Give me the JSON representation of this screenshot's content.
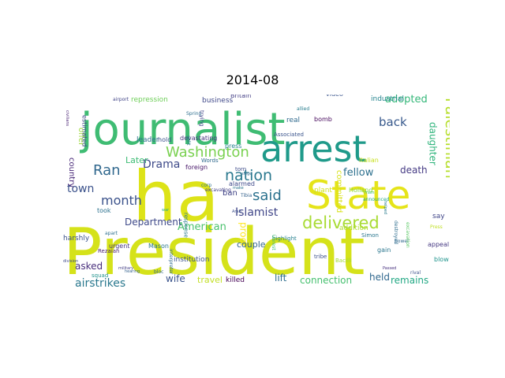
{
  "chart_data": {
    "type": "wordcloud",
    "title": "2014-08",
    "words": [
      {
        "text": "President",
        "color": "#d5e21a"
      },
      {
        "text": "journalist",
        "color": "#3fbc73"
      },
      {
        "text": "ha",
        "color": "#dde318"
      },
      {
        "text": "arrest",
        "color": "#1f9a8a"
      },
      {
        "text": "State",
        "color": "#e5e419"
      },
      {
        "text": "Palestinian",
        "color": "#b5de2b"
      },
      {
        "text": "Washington",
        "color": "#7ad151"
      },
      {
        "text": "nation",
        "color": "#2a788e"
      },
      {
        "text": "delivered",
        "color": "#a8db34"
      },
      {
        "text": "month",
        "color": "#3b528b"
      },
      {
        "text": "Ran",
        "color": "#31688e"
      },
      {
        "text": "said",
        "color": "#2c728e"
      },
      {
        "text": "airstrikes",
        "color": "#2a788e"
      },
      {
        "text": "back",
        "color": "#38598c"
      },
      {
        "text": "Drama",
        "color": "#3e4a89"
      },
      {
        "text": "town",
        "color": "#3b528b"
      },
      {
        "text": "Islamist",
        "color": "#404688"
      },
      {
        "text": "American",
        "color": "#4ac16d"
      },
      {
        "text": "Department",
        "color": "#3e4989"
      },
      {
        "text": "fellow",
        "color": "#2d708e"
      },
      {
        "text": "adopted",
        "color": "#35b779"
      },
      {
        "text": "death",
        "color": "#443983"
      },
      {
        "text": "connection",
        "color": "#46c06f"
      },
      {
        "text": "remains",
        "color": "#22a884"
      },
      {
        "text": "held",
        "color": "#31688e"
      },
      {
        "text": "travel",
        "color": "#c2df23"
      },
      {
        "text": "wife",
        "color": "#3a538b"
      },
      {
        "text": "proof",
        "color": "#fde725"
      },
      {
        "text": "couple",
        "color": "#32658e"
      },
      {
        "text": "asked",
        "color": "#472d7b"
      },
      {
        "text": "lift",
        "color": "#2e6e8e"
      },
      {
        "text": "killed",
        "color": "#440154"
      },
      {
        "text": "daughter",
        "color": "#2fb47c"
      },
      {
        "text": "country",
        "color": "#482878"
      },
      {
        "text": "Later",
        "color": "#3dbc74"
      },
      {
        "text": "offer",
        "color": "#9dd93b"
      },
      {
        "text": "committed",
        "color": "#d8e219"
      },
      {
        "text": "industrial",
        "color": "#25848e"
      },
      {
        "text": "repression",
        "color": "#6ece58"
      },
      {
        "text": "business",
        "color": "#3f4889"
      },
      {
        "text": "devastating",
        "color": "#46327e"
      },
      {
        "text": "leader",
        "color": "#2e6e8e"
      },
      {
        "text": "estimated",
        "color": "#3f4788"
      },
      {
        "text": "took",
        "color": "#2c718e"
      },
      {
        "text": "harshly",
        "color": "#3b528b"
      },
      {
        "text": "urgent",
        "color": "#453581"
      },
      {
        "text": "ban",
        "color": "#414487"
      },
      {
        "text": "say",
        "color": "#404588"
      },
      {
        "text": "addition",
        "color": "#b0dd2f"
      },
      {
        "text": "plant",
        "color": "#d0e11c"
      },
      {
        "text": "foreign",
        "color": "#481769"
      },
      {
        "text": "alarmed",
        "color": "#3e4989"
      },
      {
        "text": "press",
        "color": "#26828e"
      },
      {
        "text": "hold",
        "color": "#3b528b"
      },
      {
        "text": "real",
        "color": "#306a8e"
      },
      {
        "text": "bomb",
        "color": "#46085c"
      },
      {
        "text": "institution",
        "color": "#3b528b"
      },
      {
        "text": "response",
        "color": "#29798e"
      },
      {
        "text": "Mason",
        "color": "#2a788e"
      },
      {
        "text": "Britain",
        "color": "#433e85"
      },
      {
        "text": "video",
        "color": "#3a548c"
      },
      {
        "text": "appeal",
        "color": "#453882"
      },
      {
        "text": "blow",
        "color": "#1f948c"
      },
      {
        "text": "gain",
        "color": "#2a768e"
      },
      {
        "text": "tribe",
        "color": "#3c4f8a"
      },
      {
        "text": "highlight",
        "color": "#26818e"
      },
      {
        "text": "Bacilli",
        "color": "#a2da37"
      },
      {
        "text": "squad",
        "color": "#20928c"
      },
      {
        "text": "Holland",
        "color": "#8bd646"
      },
      {
        "text": "Italian",
        "color": "#c8e020"
      },
      {
        "text": "Words",
        "color": "#306a8e"
      },
      {
        "text": "Associated",
        "color": "#3a548c"
      },
      {
        "text": "Spring",
        "color": "#2e6f8e"
      },
      {
        "text": "Simon",
        "color": "#2a778e"
      },
      {
        "text": "torn",
        "color": "#3e4c8a"
      },
      {
        "text": "corp",
        "color": "#2c718e"
      },
      {
        "text": "excavating",
        "color": "#424086"
      },
      {
        "text": "Tibia",
        "color": "#34618d"
      },
      {
        "text": "trying",
        "color": "#404588"
      },
      {
        "text": "split",
        "color": "#2b748e"
      },
      {
        "text": "interpreter",
        "color": "#2f6b8e"
      },
      {
        "text": "main",
        "color": "#3dbc74"
      },
      {
        "text": "powel",
        "color": "#31688e"
      },
      {
        "text": "allied",
        "color": "#287d8e"
      },
      {
        "text": "Press",
        "color": "#c0df25"
      },
      {
        "text": "announced",
        "color": "#22a785"
      },
      {
        "text": "destroyed",
        "color": "#2e6d8e"
      },
      {
        "text": "excavation",
        "color": "#5ac864"
      },
      {
        "text": "helped",
        "color": "#297b8e"
      },
      {
        "text": "rival",
        "color": "#3b518b"
      },
      {
        "text": "Passed",
        "color": "#46307e"
      },
      {
        "text": "airport",
        "color": "#414487"
      },
      {
        "text": "Rezaian",
        "color": "#481f70"
      },
      {
        "text": "apart",
        "color": "#2d708e"
      },
      {
        "text": "military",
        "color": "#433e85"
      },
      {
        "text": "division",
        "color": "#3e4989"
      },
      {
        "text": "civilians",
        "color": "#482173"
      },
      {
        "text": "hearing",
        "color": "#34618d"
      },
      {
        "text": "siege",
        "color": "#2f6c8e"
      },
      {
        "text": "make",
        "color": "#2c738e"
      },
      {
        "text": "Arab",
        "color": "#3c508b"
      },
      {
        "text": "war",
        "color": "#25ac82"
      },
      {
        "text": "bloc",
        "color": "#31668e"
      },
      {
        "text": "Unrest",
        "color": "#42be71"
      }
    ]
  }
}
